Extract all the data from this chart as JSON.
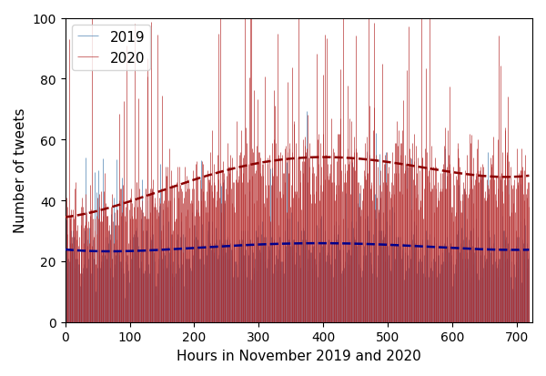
{
  "xlabel": "Hours in November 2019 and 2020",
  "ylabel": "Number of tweets",
  "xlim": [
    0,
    724
  ],
  "ylim": [
    0,
    100
  ],
  "yticks": [
    0,
    20,
    40,
    60,
    80,
    100
  ],
  "xticks": [
    0,
    100,
    200,
    300,
    400,
    500,
    600,
    700
  ],
  "color_2019": "#5b8db8",
  "color_2020": "#b22222",
  "trend_color_2019": "#00008b",
  "trend_color_2020": "#8b0000",
  "seed": 12345,
  "n_hours": 720,
  "legend_labels": [
    "2019",
    "2020"
  ],
  "figsize": [
    6.0,
    4.14
  ],
  "dpi": 100,
  "mean_2019": 22,
  "mean_2020": 42,
  "noise_2019": 10,
  "noise_2020": 18,
  "trend_2019_start": 20,
  "trend_2019_peak": 25,
  "trend_2019_end": 22,
  "trend_2020_start": 33,
  "trend_2020_peak": 52,
  "trend_2020_end": 45
}
